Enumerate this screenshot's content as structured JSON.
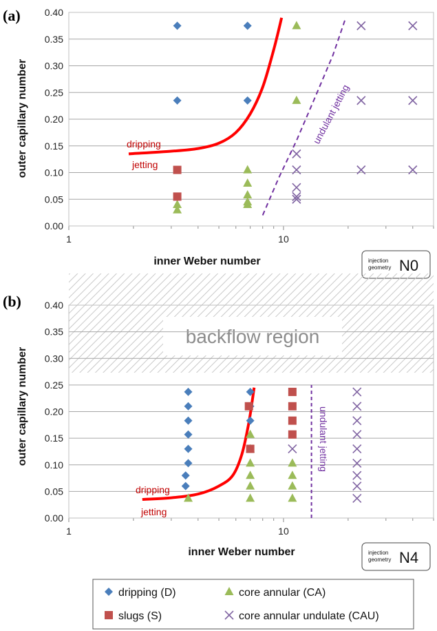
{
  "chart_data": [
    {
      "type": "scatter",
      "panel_label": "(a)",
      "xlabel": "inner Weber number",
      "ylabel": "outer capillary number",
      "xscale": "log",
      "xlim": [
        1,
        50
      ],
      "ylim": [
        0,
        0.4
      ],
      "x_ticks": [
        "1",
        "10"
      ],
      "y_ticks": [
        "0.00",
        "0.05",
        "0.10",
        "0.15",
        "0.20",
        "0.25",
        "0.30",
        "0.35",
        "0.40"
      ],
      "grid": "horizontal",
      "geometry": {
        "small_line1": "injection",
        "small_line2": "geometry",
        "code": "N0"
      },
      "series": [
        {
          "name": "dripping (D)",
          "marker": "diamond",
          "color": "#4a7ebb",
          "points": [
            [
              3.2,
              0.375
            ],
            [
              6.8,
              0.375
            ],
            [
              3.2,
              0.235
            ],
            [
              6.8,
              0.235
            ]
          ]
        },
        {
          "name": "core annular (CA)",
          "marker": "triangle",
          "color": "#9bbb59",
          "points": [
            [
              11.5,
              0.375
            ],
            [
              11.5,
              0.235
            ],
            [
              6.8,
              0.105
            ],
            [
              6.8,
              0.08
            ],
            [
              6.8,
              0.058
            ],
            [
              6.8,
              0.045
            ],
            [
              6.8,
              0.04
            ],
            [
              3.2,
              0.04
            ],
            [
              3.2,
              0.03
            ]
          ]
        },
        {
          "name": "slugs (S)",
          "marker": "square",
          "color": "#c0504d",
          "points": [
            [
              3.2,
              0.105
            ],
            [
              3.2,
              0.055
            ]
          ]
        },
        {
          "name": "core annular undulate (CAU)",
          "marker": "x",
          "color": "#8064a2",
          "points": [
            [
              23,
              0.375
            ],
            [
              40,
              0.375
            ],
            [
              23,
              0.235
            ],
            [
              40,
              0.235
            ],
            [
              11.5,
              0.135
            ],
            [
              11.5,
              0.105
            ],
            [
              23,
              0.105
            ],
            [
              40,
              0.105
            ],
            [
              11.5,
              0.072
            ],
            [
              11.5,
              0.055
            ],
            [
              11.5,
              0.05
            ]
          ]
        }
      ],
      "transition_curve": {
        "points": [
          [
            1.9,
            0.135
          ],
          [
            3,
            0.14
          ],
          [
            4,
            0.145
          ],
          [
            5,
            0.155
          ],
          [
            6,
            0.175
          ],
          [
            7,
            0.21
          ],
          [
            8,
            0.26
          ],
          [
            9,
            0.33
          ],
          [
            9.8,
            0.39
          ]
        ],
        "label_above": "dripping",
        "label_below": "jetting"
      },
      "undulant_line": {
        "points": [
          [
            8,
            0.02
          ],
          [
            9.5,
            0.09
          ],
          [
            11.5,
            0.16
          ],
          [
            14,
            0.24
          ],
          [
            17,
            0.32
          ],
          [
            19.5,
            0.39
          ]
        ],
        "label": "undulant jetting"
      }
    },
    {
      "type": "scatter",
      "panel_label": "(b)",
      "xlabel": "inner Weber number",
      "ylabel": "outer capillary number",
      "xscale": "log",
      "xlim": [
        1,
        50
      ],
      "ylim": [
        0,
        0.4
      ],
      "x_ticks": [
        "1",
        "10"
      ],
      "y_ticks": [
        "0.00",
        "0.05",
        "0.10",
        "0.15",
        "0.20",
        "0.25",
        "0.30",
        "0.35",
        "0.40"
      ],
      "grid": "horizontal",
      "region_label": "backflow region",
      "region_range": [
        0.275,
        0.385
      ],
      "geometry": {
        "small_line1": "injection",
        "small_line2": "geometry",
        "code": "N4"
      },
      "series": [
        {
          "name": "dripping (D)",
          "marker": "diamond",
          "color": "#4a7ebb",
          "points": [
            [
              3.6,
              0.237
            ],
            [
              3.6,
              0.21
            ],
            [
              3.6,
              0.183
            ],
            [
              3.6,
              0.157
            ],
            [
              3.6,
              0.13
            ],
            [
              3.6,
              0.103
            ],
            [
              3.5,
              0.08
            ],
            [
              3.5,
              0.06
            ],
            [
              7.0,
              0.237
            ],
            [
              7.0,
              0.21
            ],
            [
              7.0,
              0.183
            ]
          ]
        },
        {
          "name": "core annular (CA)",
          "marker": "triangle",
          "color": "#9bbb59",
          "points": [
            [
              3.6,
              0.037
            ],
            [
              7.0,
              0.157
            ],
            [
              7.0,
              0.13
            ],
            [
              7.0,
              0.103
            ],
            [
              7.0,
              0.08
            ],
            [
              7.0,
              0.06
            ],
            [
              7.0,
              0.037
            ],
            [
              11.0,
              0.103
            ],
            [
              11.0,
              0.08
            ],
            [
              11.0,
              0.06
            ],
            [
              11.0,
              0.037
            ]
          ]
        },
        {
          "name": "slugs (S)",
          "marker": "square",
          "color": "#c0504d",
          "points": [
            [
              6.9,
              0.21
            ],
            [
              7.0,
              0.13
            ],
            [
              11.0,
              0.237
            ],
            [
              11.0,
              0.21
            ],
            [
              11.0,
              0.183
            ],
            [
              11.0,
              0.157
            ]
          ]
        },
        {
          "name": "core annular undulate (CAU)",
          "marker": "x",
          "color": "#8064a2",
          "points": [
            [
              11.0,
              0.13
            ],
            [
              22,
              0.237
            ],
            [
              22,
              0.21
            ],
            [
              22,
              0.183
            ],
            [
              22,
              0.157
            ],
            [
              22,
              0.13
            ],
            [
              22,
              0.103
            ],
            [
              22,
              0.08
            ],
            [
              22,
              0.06
            ],
            [
              22,
              0.037
            ]
          ]
        }
      ],
      "transition_curve": {
        "points": [
          [
            2.2,
            0.035
          ],
          [
            3,
            0.038
          ],
          [
            4,
            0.045
          ],
          [
            5,
            0.06
          ],
          [
            5.8,
            0.08
          ],
          [
            6.4,
            0.12
          ],
          [
            6.9,
            0.18
          ],
          [
            7.3,
            0.245
          ]
        ],
        "label_above": "dripping",
        "label_below": "jetting"
      },
      "undulant_line": {
        "points": [
          [
            13.5,
            0.0
          ],
          [
            13.5,
            0.25
          ]
        ],
        "label": "undulant jetting"
      }
    }
  ],
  "legend": [
    {
      "marker": "diamond",
      "color": "#4a7ebb",
      "label": "dripping  (D)"
    },
    {
      "marker": "triangle",
      "color": "#9bbb59",
      "label": "core annular  (CA)"
    },
    {
      "marker": "square",
      "color": "#c0504d",
      "label": "slugs  (S)"
    },
    {
      "marker": "x",
      "color": "#8064a2",
      "label": "core annular  undulate (CAU)"
    }
  ],
  "colors": {
    "curve": "#ff0000",
    "undulant": "#7030a0",
    "grid": "#a6a6a6"
  }
}
